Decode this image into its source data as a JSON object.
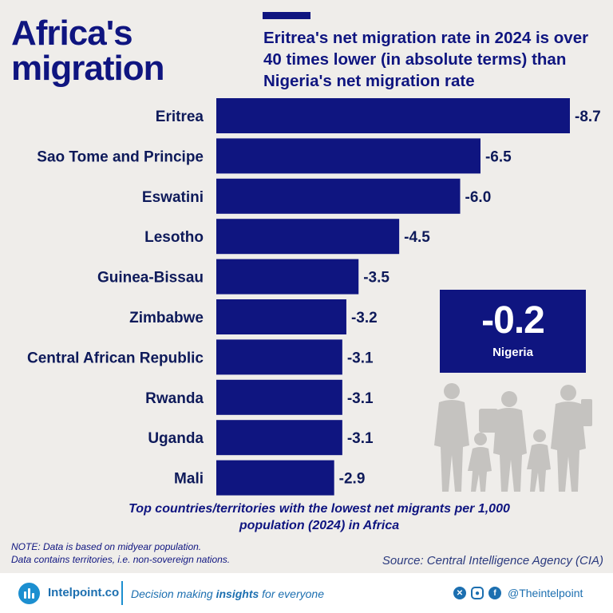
{
  "header": {
    "title_line1": "Africa's",
    "title_line2": "migration",
    "subtitle": "Eritrea's net migration rate in 2024 is over 40 times lower (in absolute terms) than Nigeria's net migration rate"
  },
  "colors": {
    "bar": "#0f1580",
    "text": "#0e1a5a",
    "background": "#efedea",
    "accent": "#1c8fd0"
  },
  "chart_data": {
    "type": "bar",
    "orientation": "horizontal",
    "title": "Top countries/territories with the lowest net migrants per 1,000 population (2024) in Africa",
    "categories": [
      "Eritrea",
      "Sao Tome and Principe",
      "Eswatini",
      "Lesotho",
      "Guinea-Bissau",
      "Zimbabwe",
      "Central African Republic",
      "Rwanda",
      "Uganda",
      "Mali"
    ],
    "values": [
      -8.7,
      -6.5,
      -6.0,
      -4.5,
      -3.5,
      -3.2,
      -3.1,
      -3.1,
      -3.1,
      -2.9
    ],
    "value_labels": [
      "-8.7",
      "-6.5",
      "-6.0",
      "-4.5",
      "-3.5",
      "-3.2",
      "-3.1",
      "-3.1",
      "-3.1",
      "-2.9"
    ],
    "xlim": [
      0,
      -8.7
    ],
    "grid": false
  },
  "callout": {
    "value": "-0.2",
    "country": "Nigeria"
  },
  "caption": {
    "line1": "Top countries/territories with the lowest net migrants per 1,000",
    "line2": "population (2024) in Africa"
  },
  "note": {
    "line1": "NOTE: Data is based on midyear population.",
    "line2": "Data contains territories, i.e. non-sovereign nations."
  },
  "source": "Source: Central Intelligence Agency (CIA)",
  "footer": {
    "brand": "Intelpoint.co",
    "tagline_pre": "Decision making ",
    "tagline_bold": "insights",
    "tagline_post": " for everyone",
    "handle": "@Theintelpoint",
    "icons": [
      "x-icon",
      "instagram-icon",
      "facebook-icon"
    ]
  }
}
